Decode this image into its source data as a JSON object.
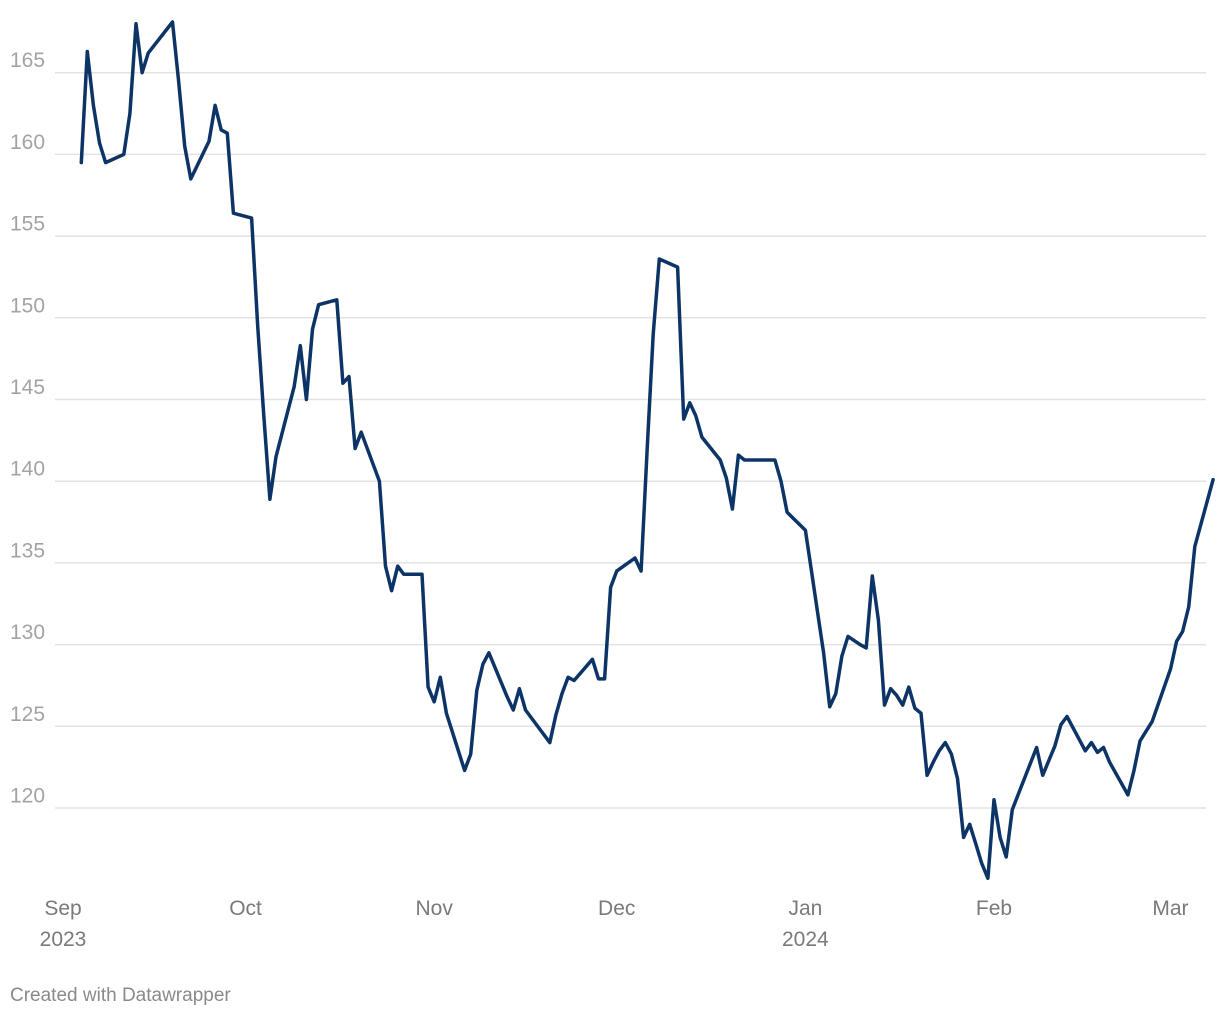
{
  "chart_data": {
    "type": "line",
    "x_axis": {
      "type": "date",
      "range": [
        "2023-09-01",
        "2024-03-05"
      ],
      "ticks": [
        {
          "date": "2023-09-01",
          "label": "Sep",
          "sublabel": "2023"
        },
        {
          "date": "2023-10-01",
          "label": "Oct",
          "sublabel": ""
        },
        {
          "date": "2023-11-01",
          "label": "Nov",
          "sublabel": ""
        },
        {
          "date": "2023-12-01",
          "label": "Dec",
          "sublabel": ""
        },
        {
          "date": "2024-01-01",
          "label": "Jan",
          "sublabel": "2024"
        },
        {
          "date": "2024-02-01",
          "label": "Feb",
          "sublabel": ""
        },
        {
          "date": "2024-03-01",
          "label": "Mar",
          "sublabel": ""
        }
      ]
    },
    "y_axis": {
      "range": [
        115,
        168
      ],
      "ticks": [
        120,
        125,
        130,
        135,
        140,
        145,
        150,
        155,
        160,
        165
      ]
    },
    "grid": true,
    "series": [
      {
        "color": "#0d3466",
        "points": [
          [
            "2023-09-04",
            159.5
          ],
          [
            "2023-09-05",
            166.3
          ],
          [
            "2023-09-06",
            163.0
          ],
          [
            "2023-09-07",
            160.7
          ],
          [
            "2023-09-08",
            159.5
          ],
          [
            "2023-09-11",
            160.0
          ],
          [
            "2023-09-12",
            162.5
          ],
          [
            "2023-09-13",
            168.0
          ],
          [
            "2023-09-14",
            165.0
          ],
          [
            "2023-09-15",
            166.2
          ],
          [
            "2023-09-19",
            168.1
          ],
          [
            "2023-09-20",
            164.5
          ],
          [
            "2023-09-21",
            160.5
          ],
          [
            "2023-09-22",
            158.5
          ],
          [
            "2023-09-25",
            160.8
          ],
          [
            "2023-09-26",
            163.0
          ],
          [
            "2023-09-27",
            161.5
          ],
          [
            "2023-09-28",
            161.3
          ],
          [
            "2023-09-29",
            156.4
          ],
          [
            "2023-10-02",
            156.1
          ],
          [
            "2023-10-03",
            149.5
          ],
          [
            "2023-10-04",
            144.0
          ],
          [
            "2023-10-05",
            138.9
          ],
          [
            "2023-10-06",
            141.5
          ],
          [
            "2023-10-09",
            145.8
          ],
          [
            "2023-10-10",
            148.3
          ],
          [
            "2023-10-11",
            145.0
          ],
          [
            "2023-10-12",
            149.3
          ],
          [
            "2023-10-13",
            150.8
          ],
          [
            "2023-10-16",
            151.1
          ],
          [
            "2023-10-17",
            146.0
          ],
          [
            "2023-10-18",
            146.4
          ],
          [
            "2023-10-19",
            142.0
          ],
          [
            "2023-10-20",
            143.0
          ],
          [
            "2023-10-23",
            140.0
          ],
          [
            "2023-10-24",
            134.8
          ],
          [
            "2023-10-25",
            133.3
          ],
          [
            "2023-10-26",
            134.8
          ],
          [
            "2023-10-27",
            134.3
          ],
          [
            "2023-10-30",
            134.3
          ],
          [
            "2023-10-31",
            127.4
          ],
          [
            "2023-11-01",
            126.5
          ],
          [
            "2023-11-02",
            128.0
          ],
          [
            "2023-11-03",
            125.8
          ],
          [
            "2023-11-06",
            122.3
          ],
          [
            "2023-11-07",
            123.3
          ],
          [
            "2023-11-08",
            127.2
          ],
          [
            "2023-11-09",
            128.8
          ],
          [
            "2023-11-10",
            129.5
          ],
          [
            "2023-11-13",
            126.8
          ],
          [
            "2023-11-14",
            126.0
          ],
          [
            "2023-11-15",
            127.3
          ],
          [
            "2023-11-16",
            126.0
          ],
          [
            "2023-11-20",
            124.0
          ],
          [
            "2023-11-21",
            125.7
          ],
          [
            "2023-11-22",
            127.0
          ],
          [
            "2023-11-23",
            128.0
          ],
          [
            "2023-11-24",
            127.8
          ],
          [
            "2023-11-27",
            129.1
          ],
          [
            "2023-11-28",
            127.9
          ],
          [
            "2023-11-29",
            127.9
          ],
          [
            "2023-11-30",
            133.5
          ],
          [
            "2023-12-01",
            134.5
          ],
          [
            "2023-12-04",
            135.3
          ],
          [
            "2023-12-05",
            134.5
          ],
          [
            "2023-12-06",
            142.0
          ],
          [
            "2023-12-07",
            149.0
          ],
          [
            "2023-12-08",
            153.6
          ],
          [
            "2023-12-11",
            153.1
          ],
          [
            "2023-12-12",
            143.8
          ],
          [
            "2023-12-13",
            144.8
          ],
          [
            "2023-12-14",
            144.0
          ],
          [
            "2023-12-15",
            142.7
          ],
          [
            "2023-12-18",
            141.3
          ],
          [
            "2023-12-19",
            140.2
          ],
          [
            "2023-12-20",
            138.3
          ],
          [
            "2023-12-21",
            141.6
          ],
          [
            "2023-12-22",
            141.3
          ],
          [
            "2023-12-27",
            141.3
          ],
          [
            "2023-12-28",
            140.0
          ],
          [
            "2023-12-29",
            138.1
          ],
          [
            "2024-01-01",
            137.0
          ],
          [
            "2024-01-02",
            134.5
          ],
          [
            "2024-01-03",
            132.0
          ],
          [
            "2024-01-04",
            129.5
          ],
          [
            "2024-01-05",
            126.2
          ],
          [
            "2024-01-06",
            127.0
          ],
          [
            "2024-01-07",
            129.3
          ],
          [
            "2024-01-08",
            130.5
          ],
          [
            "2024-01-10",
            130.0
          ],
          [
            "2024-01-11",
            129.8
          ],
          [
            "2024-01-12",
            134.2
          ],
          [
            "2024-01-13",
            131.5
          ],
          [
            "2024-01-14",
            126.3
          ],
          [
            "2024-01-15",
            127.3
          ],
          [
            "2024-01-16",
            126.9
          ],
          [
            "2024-01-17",
            126.3
          ],
          [
            "2024-01-18",
            127.4
          ],
          [
            "2024-01-19",
            126.1
          ],
          [
            "2024-01-20",
            125.8
          ],
          [
            "2024-01-21",
            122.0
          ],
          [
            "2024-01-22",
            122.8
          ],
          [
            "2024-01-23",
            123.5
          ],
          [
            "2024-01-24",
            124.0
          ],
          [
            "2024-01-25",
            123.3
          ],
          [
            "2024-01-26",
            121.8
          ],
          [
            "2024-01-27",
            118.2
          ],
          [
            "2024-01-28",
            119.0
          ],
          [
            "2024-01-29",
            117.8
          ],
          [
            "2024-01-30",
            116.6
          ],
          [
            "2024-01-31",
            115.7
          ],
          [
            "2024-02-01",
            120.5
          ],
          [
            "2024-02-02",
            118.2
          ],
          [
            "2024-02-03",
            117.0
          ],
          [
            "2024-02-04",
            119.9
          ],
          [
            "2024-02-06",
            121.8
          ],
          [
            "2024-02-08",
            123.7
          ],
          [
            "2024-02-09",
            122.0
          ],
          [
            "2024-02-11",
            123.8
          ],
          [
            "2024-02-12",
            125.1
          ],
          [
            "2024-02-13",
            125.6
          ],
          [
            "2024-02-16",
            123.5
          ],
          [
            "2024-02-17",
            124.0
          ],
          [
            "2024-02-18",
            123.4
          ],
          [
            "2024-02-19",
            123.7
          ],
          [
            "2024-02-20",
            122.8
          ],
          [
            "2024-02-23",
            120.8
          ],
          [
            "2024-02-24",
            122.3
          ],
          [
            "2024-02-25",
            124.1
          ],
          [
            "2024-02-26",
            124.7
          ],
          [
            "2024-02-27",
            125.3
          ],
          [
            "2024-03-01",
            128.5
          ],
          [
            "2024-03-02",
            130.2
          ],
          [
            "2024-03-03",
            130.8
          ],
          [
            "2024-03-04",
            132.3
          ],
          [
            "2024-03-05",
            136.0
          ],
          [
            "2024-03-08",
            140.1
          ]
        ]
      }
    ]
  },
  "credit": "Created with Datawrapper"
}
